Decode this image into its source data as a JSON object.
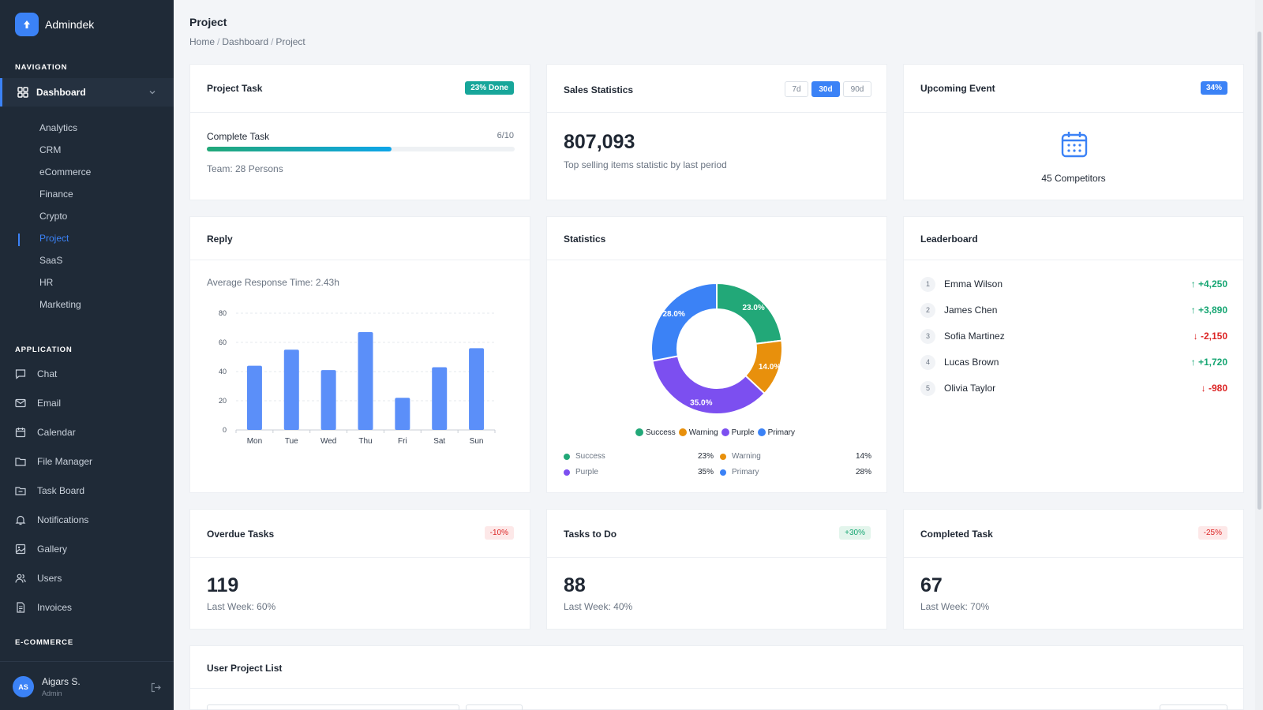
{
  "brand": {
    "name": "Admindek"
  },
  "sidebar": {
    "navigation_heading": "NAVIGATION",
    "dashboard_label": "Dashboard",
    "sub_items": [
      "Analytics",
      "CRM",
      "eCommerce",
      "Finance",
      "Crypto",
      "Project",
      "SaaS",
      "HR",
      "Marketing"
    ],
    "application_heading": "APPLICATION",
    "app_items": [
      "Chat",
      "Email",
      "Calendar",
      "File Manager",
      "Task Board",
      "Notifications",
      "Gallery",
      "Users",
      "Invoices"
    ],
    "ecommerce_heading": "E-COMMERCE",
    "user": {
      "initials": "AS",
      "name": "Aigars S.",
      "role": "Admin"
    }
  },
  "page": {
    "title": "Project",
    "breadcrumb": [
      "Home",
      "Dashboard",
      "Project"
    ]
  },
  "project_task": {
    "title": "Project Task",
    "badge": "23% Done",
    "label": "Complete Task",
    "count": "6/10",
    "progress": 0.6,
    "team": "Team: 28 Persons"
  },
  "sales": {
    "title": "Sales Statistics",
    "periods": [
      "7d",
      "30d",
      "90d"
    ],
    "active_period": "30d",
    "value": "807,093",
    "caption": "Top selling items statistic by last period"
  },
  "event": {
    "title": "Upcoming Event",
    "badge": "34%",
    "label": "45 Competitors"
  },
  "reply": {
    "title": "Reply",
    "avg": "Average Response Time: 2.43h"
  },
  "statistics": {
    "title": "Statistics",
    "rows": [
      {
        "name": "Success",
        "value": "23%",
        "color": "#22a878"
      },
      {
        "name": "Warning",
        "value": "14%",
        "color": "#e8900c"
      },
      {
        "name": "Purple",
        "value": "35%",
        "color": "#7c4ff0"
      },
      {
        "name": "Primary",
        "value": "28%",
        "color": "#3b82f6"
      }
    ]
  },
  "leaderboard": {
    "title": "Leaderboard",
    "entries": [
      {
        "rank": "1",
        "name": "Emma Wilson",
        "score": "+4,250",
        "trend": "up"
      },
      {
        "rank": "2",
        "name": "James Chen",
        "score": "+3,890",
        "trend": "up"
      },
      {
        "rank": "3",
        "name": "Sofia Martinez",
        "score": "-2,150",
        "trend": "down"
      },
      {
        "rank": "4",
        "name": "Lucas Brown",
        "score": "+1,720",
        "trend": "up"
      },
      {
        "rank": "5",
        "name": "Olivia Taylor",
        "score": "-980",
        "trend": "down"
      }
    ]
  },
  "kpis": [
    {
      "title": "Overdue Tasks",
      "badge": "-10%",
      "value": "119",
      "caption": "Last Week: 60%",
      "trend": "down"
    },
    {
      "title": "Tasks to Do",
      "badge": "+30%",
      "value": "88",
      "caption": "Last Week: 40%",
      "trend": "up"
    },
    {
      "title": "Completed Task",
      "badge": "-25%",
      "value": "67",
      "caption": "Last Week: 70%",
      "trend": "down"
    }
  ],
  "user_project_list": {
    "title": "User Project List"
  },
  "colors": {
    "primary": "#3b82f6",
    "success": "#22a878",
    "warning": "#e8900c",
    "purple": "#7c4ff0",
    "sidebar": "#1f2a37"
  },
  "chart_data": [
    {
      "type": "bar",
      "categories": [
        "Mon",
        "Tue",
        "Wed",
        "Thu",
        "Fri",
        "Sat",
        "Sun"
      ],
      "values": [
        44,
        55,
        41,
        67,
        22,
        43,
        56
      ],
      "ylim": [
        0,
        80
      ],
      "yticks": [
        0,
        20,
        40,
        60,
        80
      ],
      "grid": true,
      "color": "#5b8ff9"
    },
    {
      "type": "pie",
      "donut": true,
      "labels": [
        "Success",
        "Warning",
        "Purple",
        "Primary"
      ],
      "values": [
        23.0,
        14.0,
        35.0,
        28.0
      ],
      "value_labels": [
        "23.0%",
        "14.0%",
        "35.0%",
        "28.0%"
      ],
      "colors": [
        "#22a878",
        "#e8900c",
        "#7c4ff0",
        "#3b82f6"
      ],
      "legend": "bottom"
    }
  ]
}
